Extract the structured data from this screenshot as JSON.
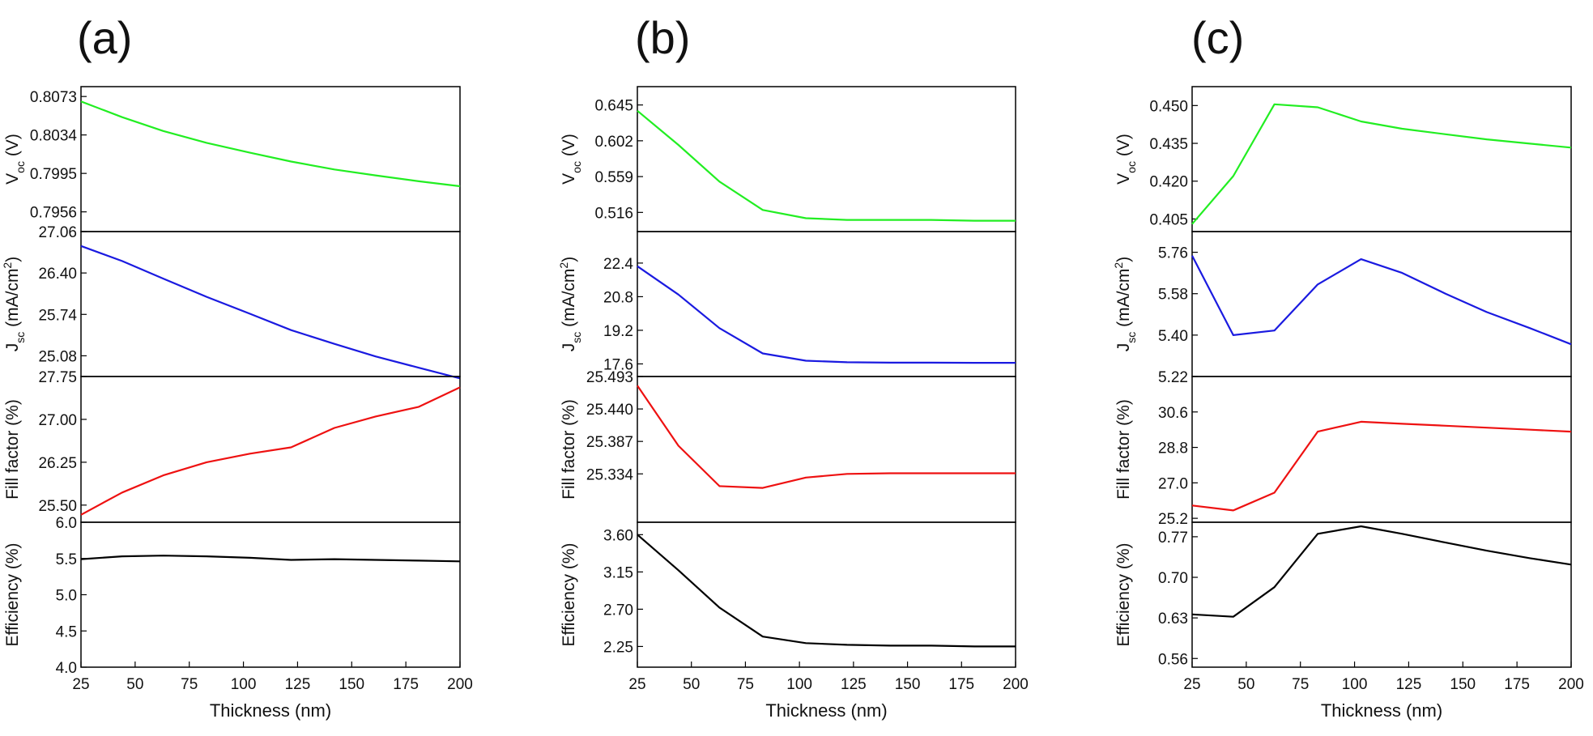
{
  "figure": {
    "panel_labels": [
      "(a)",
      "(b)",
      "(c)"
    ]
  },
  "chart_data": [
    {
      "panel": "(a)",
      "type": "line",
      "xlabel": "Thickness (nm)",
      "xlim": [
        25,
        200
      ],
      "xticks": [
        25,
        50,
        75,
        100,
        125,
        150,
        175,
        200
      ],
      "x": [
        25,
        44,
        63,
        83,
        103,
        122,
        142,
        161,
        181,
        200
      ],
      "subplots": [
        {
          "ylabel": "V",
          "ylabel_sub": "oc",
          "ylabel_suffix": " (V)",
          "color": "#22ee22",
          "ylim": [
            0.7936,
            0.8083
          ],
          "yticks": [
            "0.7956",
            "0.7995",
            "0.8034",
            "0.8073"
          ],
          "values": [
            0.8068,
            0.8052,
            0.8038,
            0.8026,
            0.8016,
            0.8007,
            0.7999,
            0.7993,
            0.7987,
            0.7982
          ]
        },
        {
          "ylabel": "J",
          "ylabel_sub": "sc",
          "ylabel_suffix": " (mA/cm",
          "ylabel_sup": "2",
          "ylabel_end": ")",
          "color": "#1a1ae0",
          "ylim": [
            24.75,
            27.06
          ],
          "yticks": [
            "25.08",
            "25.74",
            "26.40",
            "27.06"
          ],
          "values": [
            26.83,
            26.59,
            26.31,
            26.02,
            25.75,
            25.49,
            25.27,
            25.07,
            24.89,
            24.72
          ]
        },
        {
          "ylabel": "Fill  factor (%)",
          "color": "#ee1111",
          "ylim": [
            25.2,
            27.75
          ],
          "yticks": [
            "25.50",
            "26.25",
            "27.00",
            "27.75"
          ],
          "values": [
            25.33,
            25.72,
            26.02,
            26.25,
            26.4,
            26.51,
            26.85,
            27.05,
            27.22,
            27.56
          ]
        },
        {
          "ylabel": "Efficiency (%)",
          "color": "#000000",
          "ylim": [
            4.0,
            6.0
          ],
          "yticks": [
            "4.0",
            "4.5",
            "5.0",
            "5.5",
            "6.0"
          ],
          "values": [
            5.49,
            5.53,
            5.54,
            5.53,
            5.51,
            5.48,
            5.49,
            5.48,
            5.47,
            5.46
          ]
        }
      ]
    },
    {
      "panel": "(b)",
      "type": "line",
      "xlabel": "Thickness (nm)",
      "xlim": [
        25,
        200
      ],
      "xticks": [
        25,
        50,
        75,
        100,
        125,
        150,
        175,
        200
      ],
      "x": [
        25,
        44,
        63,
        83,
        103,
        122,
        142,
        161,
        181,
        200
      ],
      "subplots": [
        {
          "ylabel": "V",
          "ylabel_sub": "oc",
          "ylabel_suffix": " (V)",
          "color": "#22ee22",
          "ylim": [
            0.493,
            0.667
          ],
          "yticks": [
            "0.516",
            "0.559",
            "0.602",
            "0.645"
          ],
          "values": [
            0.638,
            0.597,
            0.553,
            0.519,
            0.509,
            0.507,
            0.507,
            0.507,
            0.506,
            0.506
          ]
        },
        {
          "ylabel": "J",
          "ylabel_sub": "sc",
          "ylabel_suffix": " (mA/cm",
          "ylabel_sup": "2",
          "ylabel_end": ")",
          "color": "#1a1ae0",
          "ylim": [
            17.0,
            23.9
          ],
          "yticks": [
            "17.6",
            "19.2",
            "20.8",
            "22.4"
          ],
          "values": [
            22.25,
            20.9,
            19.3,
            18.1,
            17.75,
            17.68,
            17.66,
            17.66,
            17.65,
            17.65
          ]
        },
        {
          "ylabel": "Fill  factor (%)",
          "color": "#ee1111",
          "ylim": [
            25.255,
            25.493
          ],
          "yticks": [
            "25.334",
            "25.387",
            "25.440",
            "25.493"
          ],
          "values": [
            25.478,
            25.38,
            25.314,
            25.311,
            25.328,
            25.334,
            25.335,
            25.335,
            25.335,
            25.335
          ]
        },
        {
          "ylabel": "Efficiency (%)",
          "color": "#000000",
          "ylim": [
            2.0,
            3.75
          ],
          "yticks": [
            "2.25",
            "2.70",
            "3.15",
            "3.60"
          ],
          "values": [
            3.6,
            3.17,
            2.72,
            2.37,
            2.29,
            2.27,
            2.26,
            2.26,
            2.25,
            2.25
          ]
        }
      ]
    },
    {
      "panel": "(c)",
      "type": "line",
      "xlabel": "Thickness (nm)",
      "xlim": [
        25,
        200
      ],
      "xticks": [
        25,
        50,
        75,
        100,
        125,
        150,
        175,
        200
      ],
      "x": [
        25,
        44,
        63,
        83,
        103,
        122,
        142,
        161,
        181,
        200
      ],
      "subplots": [
        {
          "ylabel": "V",
          "ylabel_sub": "oc",
          "ylabel_suffix": " (V)",
          "color": "#22ee22",
          "ylim": [
            0.4,
            0.4575
          ],
          "yticks": [
            "0.405",
            "0.420",
            "0.435",
            "0.450"
          ],
          "values": [
            0.403,
            0.422,
            0.4505,
            0.4493,
            0.4437,
            0.4408,
            0.4386,
            0.4366,
            0.4349,
            0.4333
          ]
        },
        {
          "ylabel": "J",
          "ylabel_sub": "sc",
          "ylabel_suffix": " (mA/cm",
          "ylabel_sup": "2",
          "ylabel_end": ")",
          "color": "#1a1ae0",
          "ylim": [
            5.22,
            5.85
          ],
          "yticks": [
            "5.22",
            "5.40",
            "5.58",
            "5.76"
          ],
          "values": [
            5.745,
            5.4,
            5.42,
            5.62,
            5.73,
            5.67,
            5.58,
            5.5,
            5.43,
            5.36
          ]
        },
        {
          "ylabel": "Fill  factor (%)",
          "color": "#ee1111",
          "ylim": [
            25.0,
            32.4
          ],
          "yticks": [
            "25.2",
            "27.0",
            "28.8",
            "30.6"
          ],
          "values": [
            25.85,
            25.6,
            26.5,
            29.6,
            30.1,
            30.0,
            29.9,
            29.8,
            29.7,
            29.6
          ]
        },
        {
          "ylabel": "Efficiency (%)",
          "color": "#000000",
          "ylim": [
            0.545,
            0.795
          ],
          "yticks": [
            "0.56",
            "0.63",
            "0.70",
            "0.77"
          ],
          "values": [
            0.636,
            0.632,
            0.683,
            0.775,
            0.788,
            0.775,
            0.76,
            0.746,
            0.733,
            0.722
          ]
        }
      ]
    }
  ]
}
